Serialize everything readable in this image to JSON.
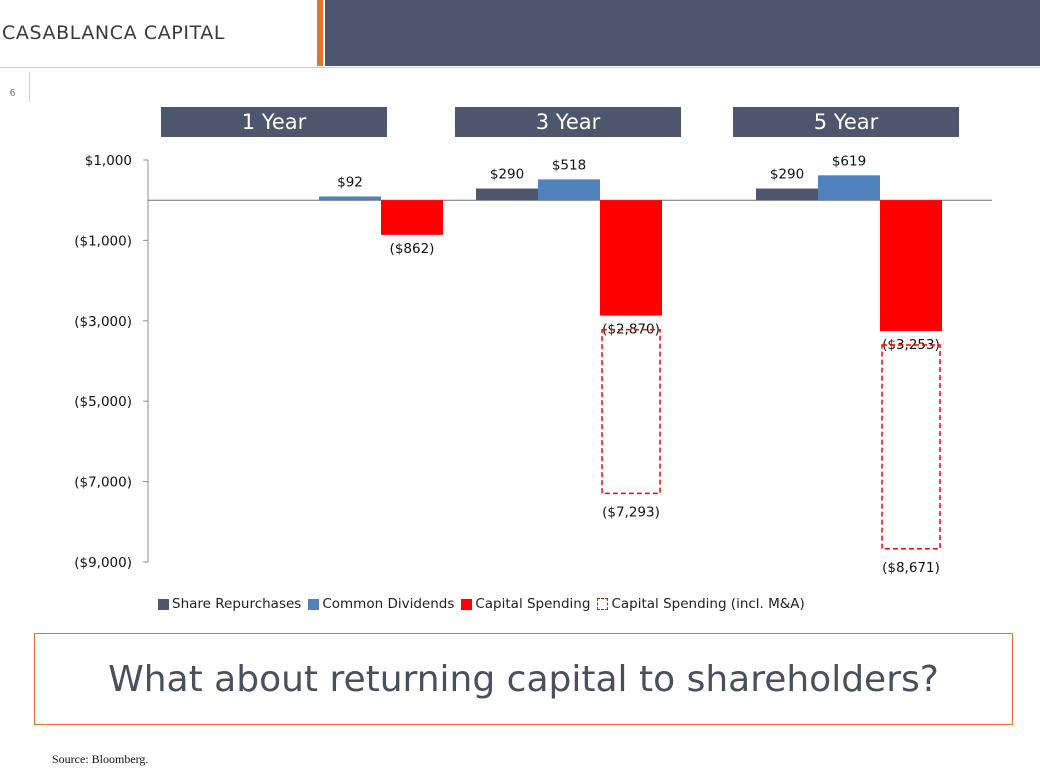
{
  "header": {
    "brand": "CASABLANCA CAPITAL"
  },
  "page_number": "6",
  "periods": [
    "1 Year",
    "3 Year",
    "5 Year"
  ],
  "legend": {
    "share_repurchases": "Share Repurchases",
    "common_dividends": "Common Dividends",
    "capital_spending": "Capital Spending",
    "capital_spending_ma": "Capital Spending (incl. M&A)"
  },
  "callout": "What about returning capital to shareholders?",
  "source": "Source: Bloomberg.",
  "colors": {
    "header": "#4d566d",
    "accent": "#e8712c",
    "share_repurchases": "#4d566d",
    "common_dividends": "#4f81bd",
    "capital_spending": "#ff0000"
  },
  "chart_data": {
    "type": "bar",
    "categories": [
      "1 Year",
      "3 Year",
      "5 Year"
    ],
    "series": [
      {
        "name": "Share Repurchases",
        "values": [
          0,
          290,
          290
        ],
        "labels": [
          "",
          "$290",
          "$290"
        ]
      },
      {
        "name": "Common Dividends",
        "values": [
          92,
          518,
          619
        ],
        "labels": [
          "$92",
          "$518",
          "$619"
        ]
      },
      {
        "name": "Capital Spending",
        "values": [
          -862,
          -2870,
          -3253
        ],
        "labels": [
          "($862)",
          "($2,870)",
          "($3,253)"
        ]
      },
      {
        "name": "Capital Spending (incl. M&A)",
        "style": "dashed outline",
        "values": [
          null,
          -7293,
          -8671
        ],
        "labels": [
          "",
          "($7,293)",
          "($8,671)"
        ]
      }
    ],
    "y_ticks": [
      1000,
      -1000,
      -3000,
      -5000,
      -7000,
      -9000
    ],
    "y_tick_labels": [
      "$1,000",
      "($1,000)",
      "($3,000)",
      "($5,000)",
      "($7,000)",
      "($9,000)"
    ],
    "ylim": [
      -9000,
      1000
    ],
    "grid": false,
    "legend_position": "bottom"
  }
}
